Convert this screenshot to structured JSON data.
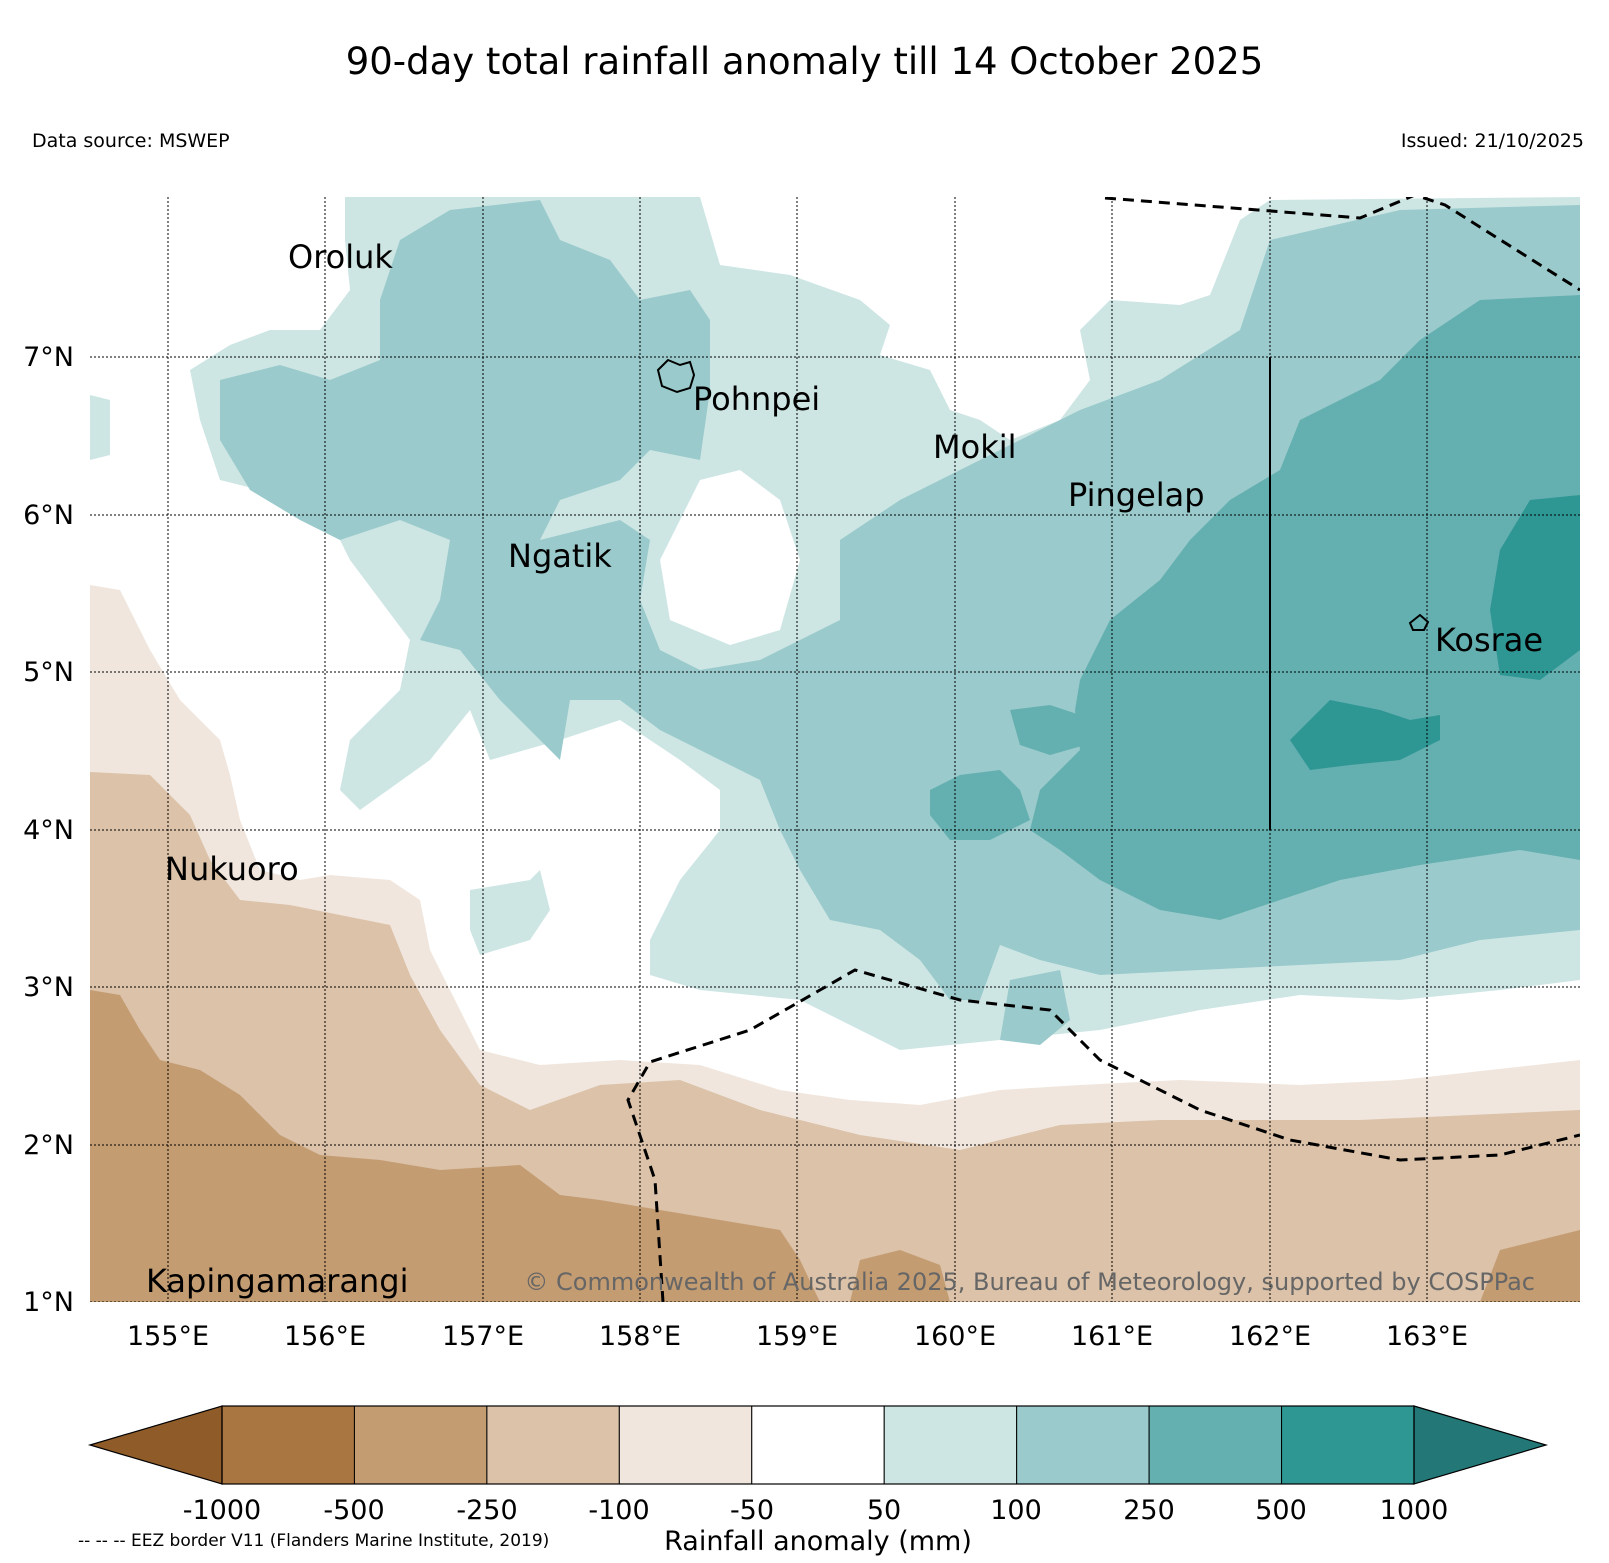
{
  "title": "90-day total rainfall anomaly till 14 October 2025",
  "data_source": "Data source: MSWEP",
  "issued": "Issued: 21/10/2025",
  "copyright": "© Commonwealth of Australia 2025, Bureau of Meteorology, supported by COSPPac",
  "eez_note": "-- -- -- EEZ border V11 (Flanders Marine Institute, 2019)",
  "map": {
    "lon_range": [
      154.5,
      164
    ],
    "lat_range": [
      1,
      8
    ],
    "lon_ticks": [
      "155°E",
      "156°E",
      "157°E",
      "158°E",
      "159°E",
      "160°E",
      "161°E",
      "162°E",
      "163°E"
    ],
    "lat_ticks": [
      "1°N",
      "2°N",
      "3°N",
      "4°N",
      "5°N",
      "6°N",
      "7°N"
    ],
    "places": [
      {
        "name": "Oroluk",
        "lon": 155.6,
        "lat": 7.7
      },
      {
        "name": "Pohnpei",
        "lon": 158.2,
        "lat": 6.9
      },
      {
        "name": "Mokil",
        "lon": 159.8,
        "lat": 6.6
      },
      {
        "name": "Pingelap",
        "lon": 160.7,
        "lat": 6.2
      },
      {
        "name": "Ngatik",
        "lon": 157.2,
        "lat": 5.8
      },
      {
        "name": "Kosrae",
        "lon": 163.0,
        "lat": 5.3
      },
      {
        "name": "Nukuoro",
        "lon": 155.0,
        "lat": 3.8
      },
      {
        "name": "Kapingamarangi",
        "lon": 154.8,
        "lat": 1.2
      }
    ]
  },
  "colorbar": {
    "label": "Rainfall anomaly (mm)",
    "ticks": [
      "-1000",
      "-500",
      "-250",
      "-100",
      "-50",
      "50",
      "100",
      "250",
      "500",
      "1000"
    ],
    "colors": [
      "#8f5b29",
      "#a97540",
      "#c49c72",
      "#dbc2a9",
      "#f0e6dd",
      "#ffffff",
      "#cde6e4",
      "#9acacb",
      "#64afb0",
      "#2e9693",
      "#237877"
    ]
  }
}
